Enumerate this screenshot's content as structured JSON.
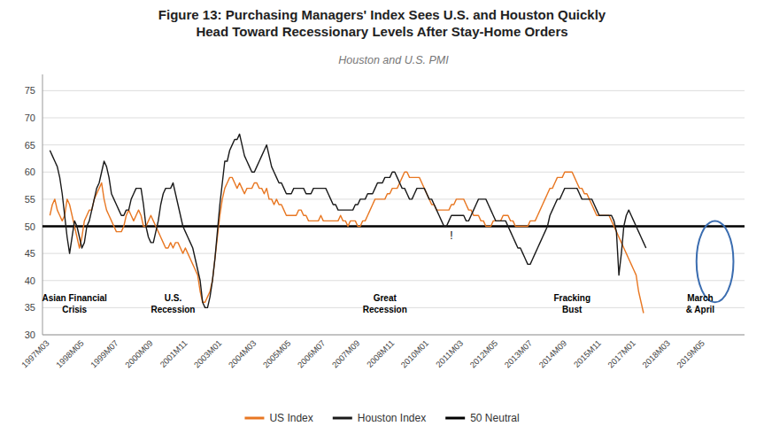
{
  "chart_data": {
    "type": "line",
    "title": "Figure 13: Purchasing Managers' Index Sees U.S. and Houston Quickly\nHead Toward Recessionary Levels After Stay-Home Orders",
    "subtitle": "Houston and U.S. PMI",
    "ylim": [
      30,
      78
    ],
    "yticks": [
      30,
      35,
      40,
      45,
      50,
      55,
      60,
      65,
      70,
      75
    ],
    "grid": true,
    "legend": "bottom",
    "categories": [
      "1997M03",
      null,
      null,
      null,
      null,
      null,
      null,
      null,
      null,
      null,
      null,
      null,
      null,
      null,
      "1998M05",
      null,
      null,
      null,
      null,
      null,
      null,
      null,
      null,
      null,
      null,
      null,
      null,
      null,
      "1999M07",
      null,
      null,
      null,
      null,
      null,
      null,
      null,
      null,
      null,
      null,
      null,
      null,
      null,
      "2000M09",
      null,
      null,
      null,
      null,
      null,
      null,
      null,
      null,
      null,
      null,
      null,
      null,
      null,
      "2001M11",
      null,
      null,
      null,
      null,
      null,
      null,
      null,
      null,
      null,
      null,
      null,
      null,
      null,
      "2003M01",
      null,
      null,
      null,
      null,
      null,
      null,
      null,
      null,
      null,
      null,
      null,
      null,
      null,
      "2004M03",
      null,
      null,
      null,
      null,
      null,
      null,
      null,
      null,
      null,
      null,
      null,
      null,
      null,
      "2005M05",
      null,
      null,
      null,
      null,
      null,
      null,
      null,
      null,
      null,
      null,
      null,
      null,
      null,
      "2006M07",
      null,
      null,
      null,
      null,
      null,
      null,
      null,
      null,
      null,
      null,
      null,
      null,
      null,
      "2007M09",
      null,
      null,
      null,
      null,
      null,
      null,
      null,
      null,
      null,
      null,
      null,
      null,
      null,
      "2008M11",
      null,
      null,
      null,
      null,
      null,
      null,
      null,
      null,
      null,
      null,
      null,
      null,
      null,
      "2010M01",
      null,
      null,
      null,
      null,
      null,
      null,
      null,
      null,
      null,
      null,
      null,
      null,
      null,
      "2011M03",
      null,
      null,
      null,
      null,
      null,
      null,
      null,
      null,
      null,
      null,
      null,
      null,
      null,
      "2012M05",
      null,
      null,
      null,
      null,
      null,
      null,
      null,
      null,
      null,
      null,
      null,
      null,
      null,
      "2013M07",
      null,
      null,
      null,
      null,
      null,
      null,
      null,
      null,
      null,
      null,
      null,
      null,
      null,
      "2014M09",
      null,
      null,
      null,
      null,
      null,
      null,
      null,
      null,
      null,
      null,
      null,
      null,
      null,
      "2015M11",
      null,
      null,
      null,
      null,
      null,
      null,
      null,
      null,
      null,
      null,
      null,
      null,
      null,
      "2017M01",
      null,
      null,
      null,
      null,
      null,
      null,
      null,
      null,
      null,
      null,
      null,
      null,
      null,
      "2018M03",
      null,
      null,
      null,
      null,
      null,
      null,
      null,
      null,
      null,
      null,
      null,
      null,
      null,
      "2019M05"
    ],
    "series": [
      {
        "name": "US Index",
        "color": "#E87722",
        "values": [
          52,
          54,
          55,
          53,
          52,
          51,
          52,
          55,
          54,
          52,
          50,
          48,
          46,
          48,
          51,
          52,
          53,
          53,
          55,
          56,
          57,
          58,
          55,
          53,
          52,
          51,
          50,
          49,
          49,
          49,
          50,
          52,
          53,
          52,
          51,
          52,
          53,
          52,
          50,
          50,
          51,
          52,
          51,
          50,
          49,
          48,
          47,
          46,
          46,
          47,
          46,
          47,
          47,
          46,
          45,
          46,
          45,
          44,
          43,
          42,
          41,
          38,
          36,
          36,
          37,
          38,
          40,
          44,
          48,
          52,
          55,
          57,
          58,
          59,
          59,
          58,
          57,
          58,
          57,
          56,
          57,
          57,
          57,
          58,
          58,
          57,
          57,
          56,
          57,
          55,
          55,
          54,
          55,
          54,
          54,
          53,
          52,
          52,
          52,
          52,
          52,
          53,
          53,
          52,
          52,
          51,
          51,
          51,
          51,
          51,
          52,
          51,
          51,
          51,
          51,
          51,
          51,
          51,
          52,
          51,
          51,
          50,
          51,
          51,
          51,
          50,
          50,
          51,
          51,
          52,
          53,
          54,
          55,
          55,
          55,
          55,
          55,
          56,
          56,
          57,
          57,
          57,
          58,
          59,
          60,
          60,
          59,
          59,
          59,
          59,
          59,
          58,
          57,
          56,
          55,
          54,
          54,
          53,
          53,
          53,
          53,
          53,
          53,
          54,
          54,
          55,
          55,
          55,
          55,
          54,
          53,
          53,
          52,
          52,
          52,
          51,
          51,
          50,
          50,
          50,
          51,
          51,
          51,
          51,
          52,
          52,
          52,
          51,
          51,
          50,
          50,
          50,
          50,
          50,
          50,
          51,
          51,
          51,
          52,
          53,
          54,
          55,
          56,
          57,
          57,
          58,
          59,
          59,
          59,
          60,
          60,
          60,
          60,
          59,
          58,
          57,
          57,
          56,
          56,
          55,
          54,
          53,
          52,
          52,
          52,
          52,
          52,
          52,
          51,
          50,
          49,
          48,
          47,
          46,
          45,
          44,
          43,
          42,
          41,
          38,
          36,
          34,
          null,
          null,
          null,
          null,
          null,
          null,
          null,
          null,
          null,
          null,
          null,
          null,
          null,
          null,
          null,
          null,
          null,
          null,
          null,
          null,
          null,
          null,
          null,
          null,
          null
        ]
      },
      {
        "name": "Houston Index",
        "color": "#1a1a1a",
        "values": [
          64,
          63,
          62,
          61,
          59,
          56,
          52,
          48,
          45,
          48,
          51,
          50,
          48,
          46,
          47,
          50,
          51,
          53,
          55,
          57,
          58,
          60,
          62,
          61,
          59,
          56,
          55,
          54,
          53,
          52,
          52,
          53,
          53,
          55,
          56,
          57,
          57,
          57,
          54,
          50,
          48,
          47,
          47,
          49,
          51,
          54,
          56,
          57,
          57,
          57,
          58,
          56,
          54,
          52,
          50,
          49,
          48,
          47,
          46,
          44,
          42,
          40,
          36,
          35,
          35,
          37,
          40,
          44,
          49,
          54,
          58,
          62,
          62,
          64,
          65,
          66,
          66,
          67,
          65,
          63,
          62,
          61,
          60,
          60,
          61,
          62,
          63,
          64,
          65,
          63,
          61,
          60,
          59,
          58,
          58,
          57,
          56,
          56,
          56,
          57,
          57,
          57,
          57,
          57,
          56,
          56,
          56,
          57,
          57,
          57,
          57,
          57,
          57,
          56,
          55,
          54,
          54,
          53,
          53,
          53,
          53,
          53,
          53,
          53,
          54,
          54,
          55,
          55,
          55,
          56,
          56,
          56,
          57,
          58,
          58,
          58,
          59,
          59,
          59,
          60,
          60,
          59,
          58,
          57,
          57,
          56,
          55,
          55,
          56,
          57,
          57,
          57,
          57,
          56,
          55,
          55,
          54,
          53,
          52,
          51,
          50,
          50,
          51,
          52,
          52,
          52,
          52,
          52,
          52,
          51,
          51,
          52,
          53,
          54,
          55,
          55,
          55,
          55,
          54,
          53,
          52,
          51,
          51,
          51,
          51,
          51,
          50,
          49,
          48,
          47,
          46,
          46,
          45,
          44,
          43,
          43,
          44,
          45,
          46,
          47,
          48,
          49,
          50,
          52,
          53,
          54,
          55,
          55,
          56,
          57,
          57,
          57,
          57,
          57,
          57,
          56,
          55,
          55,
          55,
          55,
          55,
          54,
          53,
          52,
          52,
          52,
          52,
          52,
          52,
          51,
          49,
          41,
          45,
          50,
          52,
          53,
          52,
          51,
          50,
          49,
          48,
          47,
          46,
          null,
          null,
          null,
          null,
          null,
          null,
          null,
          null,
          null,
          null,
          null,
          null,
          null,
          null,
          null,
          null,
          null,
          null,
          null,
          null,
          null,
          null,
          null,
          null
        ]
      }
    ],
    "reference_lines": [
      {
        "name": "50 Neutral",
        "value": 50,
        "color": "#000000"
      }
    ],
    "annotations": [
      "Asian Financial\nCrisis",
      "U.S.\nRecession",
      "Great\nRecession",
      "Fracking\nBust",
      "March\n& April",
      "!"
    ]
  }
}
